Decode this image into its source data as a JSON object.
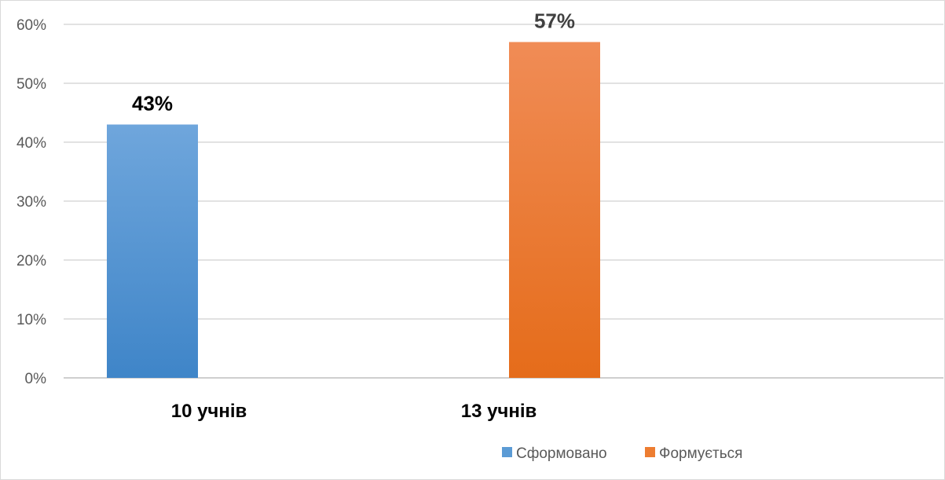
{
  "chart_data": {
    "type": "bar",
    "categories": [
      "10 учнів",
      "13 учнів"
    ],
    "series": [
      {
        "name": "Сформовано",
        "values": [
          0.43,
          null
        ],
        "color": "#5b9bd5"
      },
      {
        "name": "Формується",
        "values": [
          null,
          0.57
        ],
        "color": "#ed7d31"
      }
    ],
    "data_labels": [
      "43%",
      "57%"
    ],
    "data_label_colors": [
      "#000000",
      "#404040"
    ],
    "ylim": [
      0,
      0.6
    ],
    "y_ticks": [
      0,
      0.1,
      0.2,
      0.3,
      0.4,
      0.5,
      0.6
    ],
    "y_tick_labels": [
      "0%",
      "10%",
      "20%",
      "30%",
      "40%",
      "50%",
      "60%"
    ],
    "grid": true,
    "legend_position": "bottom-right",
    "title": "",
    "xlabel": "",
    "ylabel": ""
  }
}
